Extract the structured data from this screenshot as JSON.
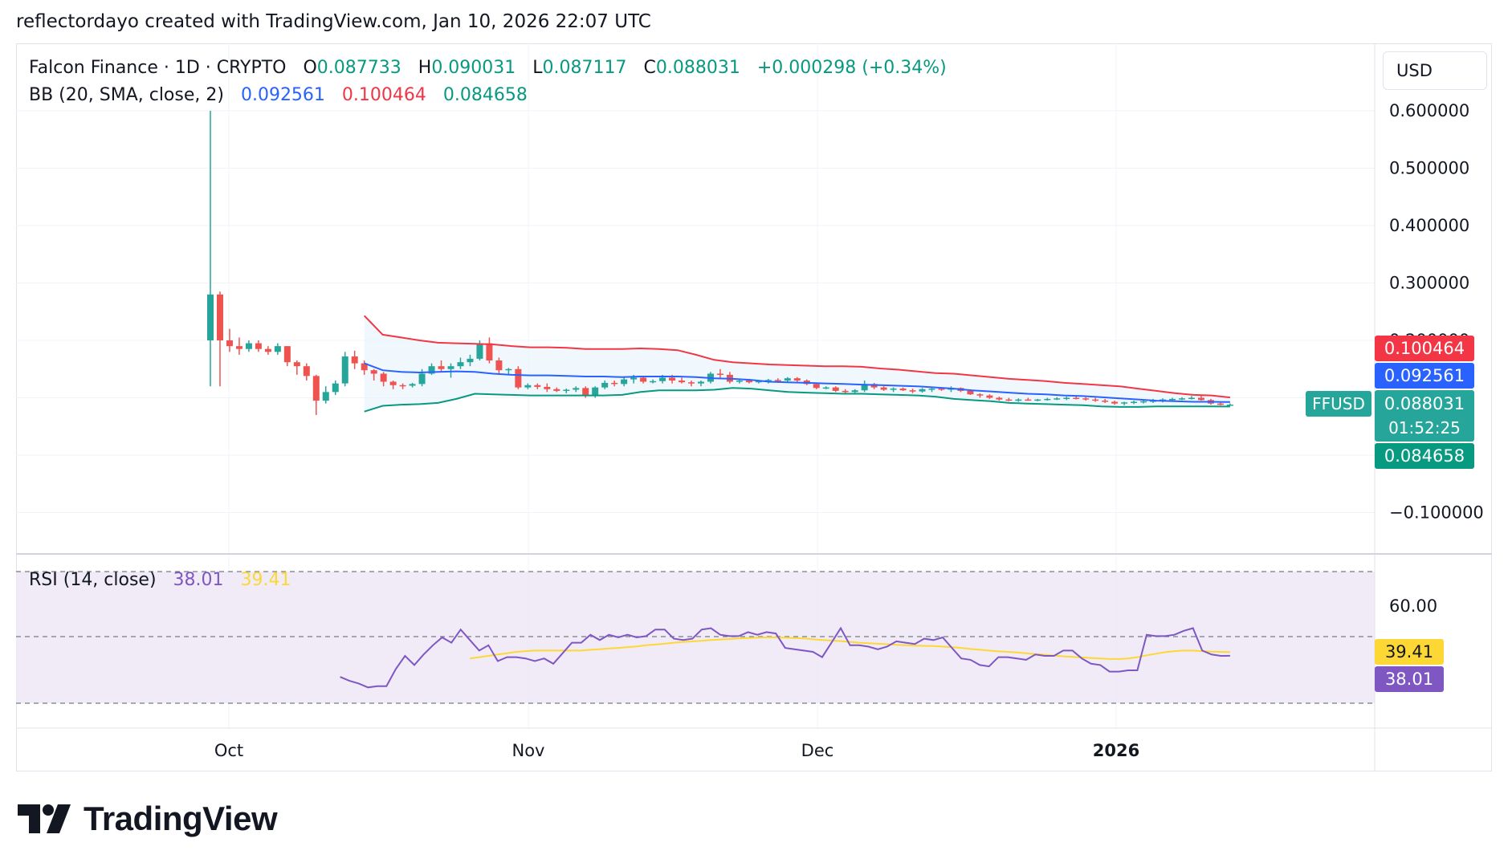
{
  "caption": "reflectordayo created with TradingView.com, Jan 10, 2026 22:07 UTC",
  "legend": {
    "symbol": "Falcon Finance · 1D · CRYPTO",
    "open_label": "O",
    "open": "0.087733",
    "high_label": "H",
    "high": "0.090031",
    "low_label": "L",
    "low": "0.087117",
    "close_label": "C",
    "close": "0.088031",
    "change": "+0.000298 (+0.34%)"
  },
  "bb_legend": {
    "label": "BB (20, SMA, close, 2)",
    "basis": "0.092561",
    "upper": "0.100464",
    "lower": "0.084658"
  },
  "rsi_legend": {
    "label": "RSI (14, close)",
    "rsi": "38.01",
    "ma": "39.41"
  },
  "currency_button": "USD",
  "symbol_badge": "FFUSD",
  "price_scale": {
    "ticks": [
      "0.600000",
      "0.500000",
      "0.400000",
      "0.300000",
      "0.200000",
      "−0.100000"
    ],
    "upper_box": "0.100464",
    "basis_box": "0.092561",
    "last_box": "0.088031",
    "countdown": "01:52:25",
    "lower_box": "0.084658"
  },
  "rsi_scale": {
    "tick": "60.00",
    "ma_box": "39.41",
    "rsi_box": "38.01"
  },
  "time_axis": [
    "Oct",
    "Nov",
    "Dec",
    "2026"
  ],
  "colors": {
    "up": "#26a69a",
    "down": "#ef5350",
    "bb_upper": "#f23645",
    "bb_basis": "#2962ff",
    "bb_lower": "#089981",
    "rsi_line": "#7e57c2",
    "rsi_ma": "#fdd835",
    "rsi_band": "#ede7f6"
  },
  "chart_data": {
    "type": "candlestick",
    "yrange": [
      -0.1,
      0.6
    ],
    "candles": [
      [
        0.2,
        0.6,
        0.12,
        0.28
      ],
      [
        0.28,
        0.285,
        0.12,
        0.2
      ],
      [
        0.2,
        0.22,
        0.18,
        0.19
      ],
      [
        0.19,
        0.205,
        0.175,
        0.185
      ],
      [
        0.185,
        0.2,
        0.18,
        0.195
      ],
      [
        0.195,
        0.2,
        0.18,
        0.185
      ],
      [
        0.185,
        0.19,
        0.175,
        0.18
      ],
      [
        0.18,
        0.195,
        0.175,
        0.19
      ],
      [
        0.19,
        0.19,
        0.155,
        0.162
      ],
      [
        0.162,
        0.165,
        0.14,
        0.155
      ],
      [
        0.155,
        0.16,
        0.13,
        0.138
      ],
      [
        0.138,
        0.14,
        0.07,
        0.095
      ],
      [
        0.095,
        0.12,
        0.09,
        0.11
      ],
      [
        0.11,
        0.13,
        0.105,
        0.125
      ],
      [
        0.125,
        0.18,
        0.12,
        0.172
      ],
      [
        0.172,
        0.182,
        0.15,
        0.16
      ],
      [
        0.16,
        0.165,
        0.14,
        0.148
      ],
      [
        0.148,
        0.15,
        0.13,
        0.142
      ],
      [
        0.142,
        0.145,
        0.12,
        0.128
      ],
      [
        0.128,
        0.13,
        0.115,
        0.122
      ],
      [
        0.122,
        0.125,
        0.115,
        0.121
      ],
      [
        0.121,
        0.126,
        0.118,
        0.124
      ],
      [
        0.124,
        0.15,
        0.12,
        0.142
      ],
      [
        0.142,
        0.16,
        0.14,
        0.155
      ],
      [
        0.155,
        0.165,
        0.145,
        0.15
      ],
      [
        0.15,
        0.16,
        0.135,
        0.155
      ],
      [
        0.155,
        0.17,
        0.15,
        0.162
      ],
      [
        0.162,
        0.175,
        0.155,
        0.168
      ],
      [
        0.168,
        0.2,
        0.165,
        0.195
      ],
      [
        0.195,
        0.205,
        0.16,
        0.165
      ],
      [
        0.165,
        0.17,
        0.14,
        0.148
      ],
      [
        0.148,
        0.152,
        0.14,
        0.15
      ],
      [
        0.15,
        0.155,
        0.115,
        0.118
      ],
      [
        0.118,
        0.125,
        0.115,
        0.122
      ],
      [
        0.122,
        0.125,
        0.115,
        0.119
      ],
      [
        0.119,
        0.125,
        0.11,
        0.115
      ],
      [
        0.115,
        0.118,
        0.11,
        0.112
      ],
      [
        0.112,
        0.116,
        0.108,
        0.114
      ],
      [
        0.114,
        0.12,
        0.11,
        0.117
      ],
      [
        0.117,
        0.12,
        0.1,
        0.105
      ],
      [
        0.105,
        0.12,
        0.1,
        0.118
      ],
      [
        0.118,
        0.13,
        0.115,
        0.126
      ],
      [
        0.126,
        0.13,
        0.12,
        0.124
      ],
      [
        0.124,
        0.135,
        0.12,
        0.132
      ],
      [
        0.132,
        0.14,
        0.125,
        0.135
      ],
      [
        0.135,
        0.138,
        0.125,
        0.128
      ],
      [
        0.128,
        0.132,
        0.125,
        0.129
      ],
      [
        0.129,
        0.14,
        0.125,
        0.135
      ],
      [
        0.135,
        0.14,
        0.125,
        0.13
      ],
      [
        0.13,
        0.135,
        0.125,
        0.127
      ],
      [
        0.127,
        0.13,
        0.12,
        0.125
      ],
      [
        0.125,
        0.13,
        0.12,
        0.128
      ],
      [
        0.128,
        0.145,
        0.125,
        0.142
      ],
      [
        0.142,
        0.15,
        0.135,
        0.14
      ],
      [
        0.14,
        0.145,
        0.125,
        0.128
      ],
      [
        0.128,
        0.132,
        0.125,
        0.13
      ],
      [
        0.13,
        0.133,
        0.125,
        0.127
      ],
      [
        0.127,
        0.13,
        0.125,
        0.129
      ],
      [
        0.129,
        0.133,
        0.125,
        0.131
      ],
      [
        0.131,
        0.134,
        0.126,
        0.13
      ],
      [
        0.13,
        0.136,
        0.128,
        0.134
      ],
      [
        0.134,
        0.136,
        0.128,
        0.13
      ],
      [
        0.13,
        0.132,
        0.122,
        0.124
      ],
      [
        0.124,
        0.126,
        0.115,
        0.117
      ],
      [
        0.117,
        0.12,
        0.115,
        0.118
      ],
      [
        0.118,
        0.12,
        0.11,
        0.112
      ],
      [
        0.112,
        0.115,
        0.108,
        0.11
      ],
      [
        0.11,
        0.115,
        0.108,
        0.113
      ],
      [
        0.113,
        0.13,
        0.11,
        0.124
      ],
      [
        0.124,
        0.126,
        0.115,
        0.118
      ],
      [
        0.118,
        0.12,
        0.112,
        0.114
      ],
      [
        0.114,
        0.118,
        0.11,
        0.116
      ],
      [
        0.116,
        0.118,
        0.112,
        0.113
      ],
      [
        0.113,
        0.116,
        0.108,
        0.111
      ],
      [
        0.111,
        0.117,
        0.109,
        0.115
      ],
      [
        0.115,
        0.118,
        0.11,
        0.116
      ],
      [
        0.116,
        0.118,
        0.112,
        0.114
      ],
      [
        0.114,
        0.12,
        0.11,
        0.117
      ],
      [
        0.117,
        0.118,
        0.11,
        0.112
      ],
      [
        0.112,
        0.114,
        0.105,
        0.106
      ],
      [
        0.106,
        0.108,
        0.1,
        0.104
      ],
      [
        0.104,
        0.106,
        0.098,
        0.1
      ],
      [
        0.1,
        0.102,
        0.095,
        0.097
      ],
      [
        0.097,
        0.1,
        0.094,
        0.096
      ],
      [
        0.096,
        0.099,
        0.093,
        0.097
      ],
      [
        0.097,
        0.1,
        0.095,
        0.096
      ],
      [
        0.096,
        0.098,
        0.094,
        0.097
      ],
      [
        0.097,
        0.1,
        0.095,
        0.098
      ],
      [
        0.098,
        0.101,
        0.096,
        0.099
      ],
      [
        0.099,
        0.102,
        0.096,
        0.1
      ],
      [
        0.1,
        0.103,
        0.097,
        0.099
      ],
      [
        0.099,
        0.101,
        0.095,
        0.097
      ],
      [
        0.097,
        0.1,
        0.093,
        0.095
      ],
      [
        0.095,
        0.098,
        0.091,
        0.093
      ],
      [
        0.093,
        0.095,
        0.088,
        0.09
      ],
      [
        0.09,
        0.093,
        0.087,
        0.092
      ],
      [
        0.092,
        0.095,
        0.089,
        0.093
      ],
      [
        0.093,
        0.096,
        0.09,
        0.094
      ],
      [
        0.094,
        0.098,
        0.091,
        0.095
      ],
      [
        0.095,
        0.099,
        0.092,
        0.097
      ],
      [
        0.097,
        0.1,
        0.094,
        0.098
      ],
      [
        0.098,
        0.101,
        0.096,
        0.099
      ],
      [
        0.099,
        0.103,
        0.097,
        0.1
      ],
      [
        0.1,
        0.104,
        0.095,
        0.096
      ],
      [
        0.096,
        0.098,
        0.088,
        0.09
      ],
      [
        0.09,
        0.092,
        0.087,
        0.0877
      ],
      [
        0.087733,
        0.090031,
        0.087117,
        0.088031
      ]
    ],
    "bb_upper": [
      0.243,
      0.21,
      0.205,
      0.2,
      0.196,
      0.195,
      0.194,
      0.193,
      0.19,
      0.188,
      0.188,
      0.187,
      0.185,
      0.185,
      0.185,
      0.186,
      0.185,
      0.183,
      0.175,
      0.166,
      0.162,
      0.16,
      0.158,
      0.157,
      0.156,
      0.155,
      0.155,
      0.154,
      0.151,
      0.149,
      0.146,
      0.143,
      0.142,
      0.139,
      0.136,
      0.133,
      0.131,
      0.129,
      0.126,
      0.124,
      0.122,
      0.12,
      0.116,
      0.112,
      0.108,
      0.105,
      0.104,
      0.1005
    ],
    "bb_basis": [
      0.16,
      0.148,
      0.145,
      0.144,
      0.145,
      0.146,
      0.145,
      0.142,
      0.14,
      0.139,
      0.139,
      0.138,
      0.137,
      0.137,
      0.136,
      0.137,
      0.137,
      0.137,
      0.136,
      0.134,
      0.133,
      0.131,
      0.128,
      0.127,
      0.126,
      0.125,
      0.124,
      0.123,
      0.122,
      0.121,
      0.12,
      0.118,
      0.116,
      0.113,
      0.111,
      0.109,
      0.107,
      0.106,
      0.104,
      0.103,
      0.101,
      0.099,
      0.097,
      0.095,
      0.094,
      0.093,
      0.093,
      0.0926
    ],
    "bb_lower": [
      0.076,
      0.086,
      0.088,
      0.089,
      0.091,
      0.098,
      0.107,
      0.106,
      0.105,
      0.104,
      0.104,
      0.104,
      0.104,
      0.104,
      0.105,
      0.11,
      0.113,
      0.113,
      0.113,
      0.114,
      0.117,
      0.116,
      0.113,
      0.11,
      0.109,
      0.108,
      0.107,
      0.107,
      0.106,
      0.105,
      0.104,
      0.102,
      0.098,
      0.096,
      0.094,
      0.091,
      0.09,
      0.089,
      0.088,
      0.087,
      0.085,
      0.084,
      0.084,
      0.085,
      0.085,
      0.085,
      0.085,
      0.0847
    ],
    "rsi": [
      null,
      null,
      null,
      null,
      null,
      null,
      null,
      null,
      null,
      null,
      null,
      null,
      null,
      null,
      30.0,
      28.5,
      27.5,
      26.0,
      26.5,
      26.5,
      33.0,
      38.0,
      34.5,
      38.5,
      42.0,
      45.0,
      43.0,
      48.0,
      44.0,
      40.0,
      42.0,
      36.0,
      37.5,
      37.5,
      37.0,
      36.0,
      37.0,
      35.0,
      39.0,
      43.0,
      43.0,
      46.0,
      44.0,
      46.0,
      45.0,
      46.0,
      45.0,
      45.5,
      48.0,
      48.0,
      44.5,
      44.0,
      44.5,
      48.0,
      48.5,
      46.0,
      45.5,
      45.5,
      47.0,
      46.0,
      47.0,
      46.5,
      41.0,
      40.5,
      40.0,
      39.5,
      37.5,
      43.0,
      48.5,
      42.0,
      42.0,
      41.5,
      40.5,
      41.5,
      43.5,
      43.0,
      42.5,
      44.5,
      44.0,
      45.0,
      41.0,
      37.0,
      36.5,
      34.5,
      34.0,
      37.5,
      37.5,
      37.0,
      36.5,
      38.5,
      38.0,
      38.0,
      40.0,
      40.0,
      37.0,
      35.0,
      34.5,
      32.0,
      32.0,
      32.5,
      32.5,
      46.0,
      45.5,
      45.5,
      46.0,
      47.5,
      48.5,
      40.0,
      38.5,
      38.0,
      38.01
    ],
    "rsi_ma": [
      null,
      null,
      null,
      null,
      null,
      null,
      null,
      null,
      null,
      null,
      null,
      null,
      null,
      null,
      null,
      null,
      null,
      null,
      null,
      null,
      null,
      null,
      null,
      null,
      null,
      null,
      null,
      null,
      37.0,
      37.5,
      38.0,
      38.5,
      39.0,
      39.5,
      39.8,
      40.0,
      40.0,
      40.0,
      40.0,
      40.0,
      40.0,
      40.3,
      40.5,
      40.8,
      41.0,
      41.3,
      41.6,
      42.0,
      42.3,
      42.6,
      43.0,
      43.3,
      43.5,
      43.7,
      44.0,
      44.2,
      44.4,
      44.6,
      44.8,
      44.9,
      45.0,
      45.0,
      44.9,
      44.8,
      44.6,
      44.3,
      44.0,
      43.8,
      43.6,
      43.3,
      43.0,
      42.8,
      42.6,
      42.4,
      42.2,
      42.0,
      41.9,
      41.8,
      41.7,
      41.5,
      41.3,
      41.0,
      40.6,
      40.3,
      40.0,
      39.7,
      39.5,
      39.3,
      39.0,
      38.7,
      38.4,
      38.1,
      37.8,
      37.6,
      37.4,
      37.2,
      37.0,
      36.8,
      36.8,
      37.0,
      37.5,
      38.2,
      38.8,
      39.4,
      39.8,
      40.0,
      40.0,
      39.8,
      39.6,
      39.5,
      39.41
    ],
    "rsi_range": [
      20,
      70
    ],
    "rsi_bands": [
      30,
      50,
      70
    ],
    "rsi_band_labels": [
      "60.00"
    ]
  }
}
